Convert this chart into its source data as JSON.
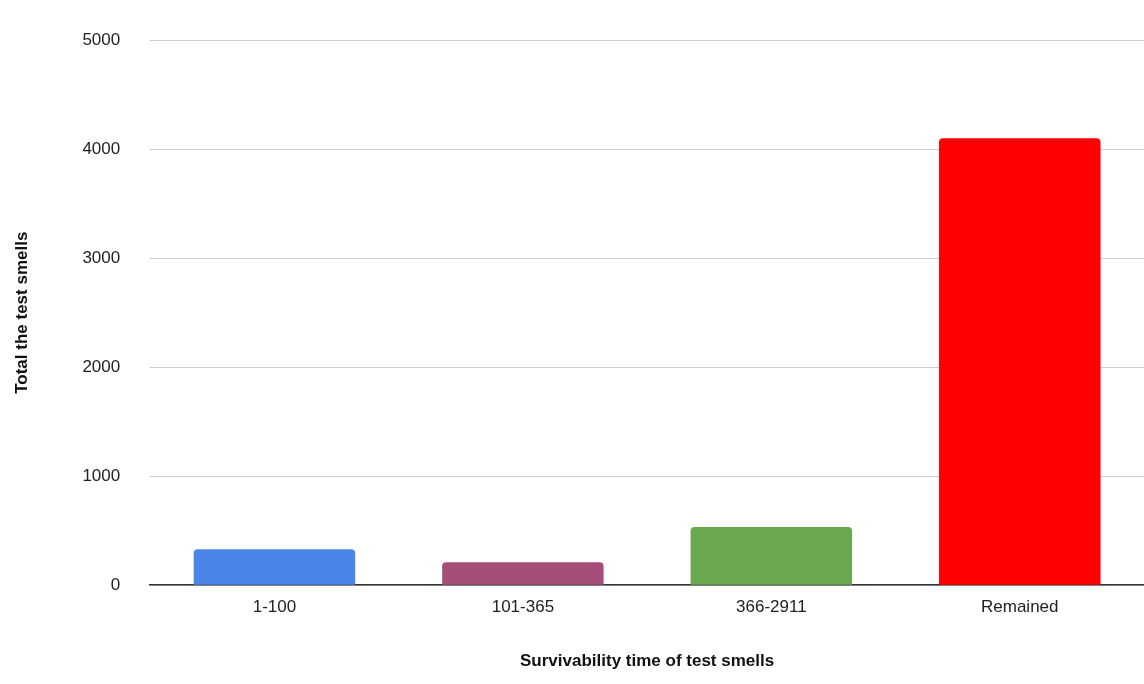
{
  "chart_data": {
    "type": "bar",
    "xlabel": "Survivability time of test smells",
    "ylabel": "Total the test smells",
    "categories": [
      "1-100",
      "101-365",
      "366-2911",
      "Remained"
    ],
    "values": [
      330,
      210,
      535,
      4100
    ],
    "colors": [
      "#4a86e8",
      "#a64d79",
      "#6aa84f",
      "#ff0000"
    ],
    "ylim": [
      0,
      5000
    ],
    "yticks": [
      0,
      1000,
      2000,
      3000,
      4000,
      5000
    ],
    "grid": "y",
    "legend": false
  }
}
